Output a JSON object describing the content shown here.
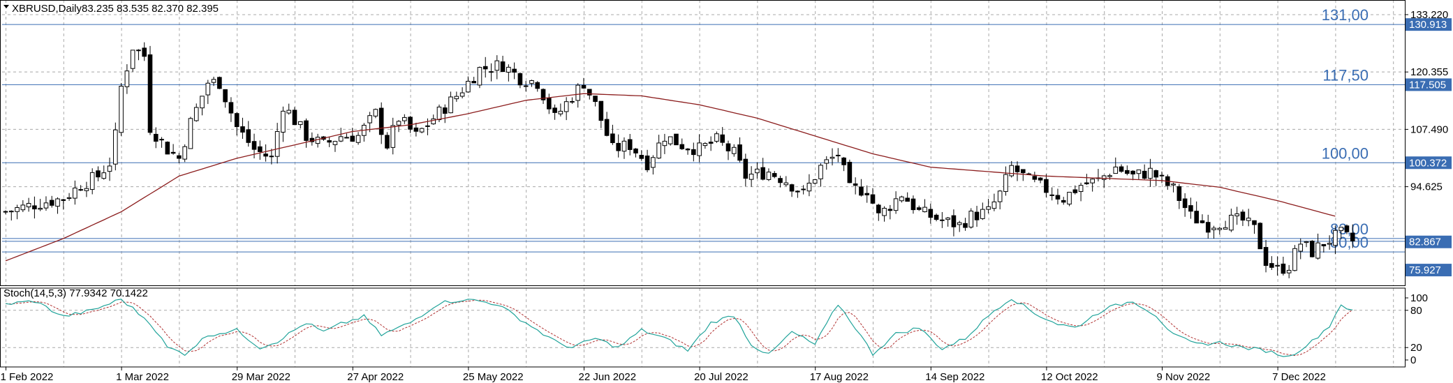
{
  "header": {
    "symbol": "XBRUSD,Daily",
    "ohlc": "83.235 83.535 82.370 82.395"
  },
  "indicator": {
    "label": "Stoch(14,5,3) 77.9342 70.1422",
    "levels": [
      100,
      80,
      20,
      0
    ],
    "level_labels": [
      "100",
      "80",
      "20",
      "0"
    ]
  },
  "colors": {
    "bull": "#ffffff",
    "bear": "#000000",
    "ma": "#8b1c1c",
    "stoch_main": "#20a39a",
    "stoch_signal": "#b03030",
    "level_line": "#3a6db3",
    "tag_bg": "#3a6db3"
  },
  "chart_data": {
    "type": "candlestick",
    "y_axis_ticks": [
      "133.220",
      "120.355",
      "107.490",
      "94.625"
    ],
    "y_axis_tick_values": [
      133.22,
      120.355,
      107.49,
      94.625
    ],
    "ylim": [
      72.5,
      136.5
    ],
    "x_tick_labels": [
      "1 Feb 2022",
      "1 Mar 2022",
      "29 Mar 2022",
      "27 Apr 2022",
      "25 May 2022",
      "22 Jun 2022",
      "20 Jul 2022",
      "17 Aug 2022",
      "14 Sep 2022",
      "12 Oct 2022",
      "9 Nov 2022",
      "7 Dec 2022"
    ],
    "x_tick_index": [
      0,
      20,
      40,
      60,
      80,
      100,
      120,
      140,
      160,
      180,
      200,
      220
    ],
    "price_levels": [
      {
        "label": "131,00",
        "value": 131.0,
        "tag": "130.913"
      },
      {
        "label": "117,50",
        "value": 117.5,
        "tag": "117.505"
      },
      {
        "label": "100,00",
        "value": 100.0,
        "tag": "100.372"
      },
      {
        "label": "83,00",
        "value": 83.0,
        "tag": "82.867"
      },
      {
        "label": "80,00",
        "value": 80.0,
        "tag": "75.927"
      }
    ],
    "close_anchors": [
      [
        0,
        89
      ],
      [
        6,
        91
      ],
      [
        10,
        92
      ],
      [
        13,
        95
      ],
      [
        16,
        97
      ],
      [
        18,
        100
      ],
      [
        19,
        106
      ],
      [
        20,
        117
      ],
      [
        22,
        126
      ],
      [
        24,
        124
      ],
      [
        25,
        108
      ],
      [
        28,
        103
      ],
      [
        30,
        101
      ],
      [
        32,
        109
      ],
      [
        35,
        118
      ],
      [
        37,
        118
      ],
      [
        40,
        108
      ],
      [
        43,
        103
      ],
      [
        46,
        101
      ],
      [
        48,
        113
      ],
      [
        52,
        106
      ],
      [
        55,
        104
      ],
      [
        58,
        106
      ],
      [
        61,
        106
      ],
      [
        64,
        111
      ],
      [
        66,
        104
      ],
      [
        68,
        110
      ],
      [
        71,
        106
      ],
      [
        74,
        110
      ],
      [
        78,
        115
      ],
      [
        82,
        121
      ],
      [
        86,
        122
      ],
      [
        89,
        119
      ],
      [
        92,
        118
      ],
      [
        95,
        110
      ],
      [
        98,
        115
      ],
      [
        100,
        118
      ],
      [
        102,
        113
      ],
      [
        105,
        103
      ],
      [
        108,
        104
      ],
      [
        111,
        100
      ],
      [
        114,
        106
      ],
      [
        117,
        104
      ],
      [
        120,
        103
      ],
      [
        123,
        105
      ],
      [
        126,
        102
      ],
      [
        128,
        97
      ],
      [
        132,
        98
      ],
      [
        135,
        96
      ],
      [
        138,
        93
      ],
      [
        141,
        99
      ],
      [
        144,
        102
      ],
      [
        146,
        94
      ],
      [
        149,
        94
      ],
      [
        151,
        88
      ],
      [
        155,
        93
      ],
      [
        158,
        89
      ],
      [
        162,
        87
      ],
      [
        165,
        86
      ],
      [
        167,
        88
      ],
      [
        170,
        89
      ],
      [
        172,
        93
      ],
      [
        174,
        99
      ],
      [
        177,
        96
      ],
      [
        180,
        94
      ],
      [
        183,
        92
      ],
      [
        186,
        95
      ],
      [
        189,
        96
      ],
      [
        192,
        99
      ],
      [
        195,
        97
      ],
      [
        198,
        98
      ],
      [
        200,
        96
      ],
      [
        202,
        94
      ],
      [
        205,
        88
      ],
      [
        208,
        86
      ],
      [
        211,
        87
      ],
      [
        214,
        87
      ],
      [
        216,
        85
      ],
      [
        218,
        78
      ],
      [
        220,
        76
      ],
      [
        222,
        77
      ],
      [
        224,
        82
      ],
      [
        226,
        80
      ],
      [
        228,
        82
      ],
      [
        231,
        84
      ],
      [
        233,
        82.4
      ]
    ],
    "candle_count": 234,
    "ma_anchors": [
      [
        0,
        78
      ],
      [
        10,
        83
      ],
      [
        20,
        89
      ],
      [
        30,
        97
      ],
      [
        40,
        101
      ],
      [
        50,
        104
      ],
      [
        60,
        107
      ],
      [
        70,
        108.5
      ],
      [
        80,
        111
      ],
      [
        90,
        114
      ],
      [
        100,
        115.5
      ],
      [
        110,
        115
      ],
      [
        120,
        113
      ],
      [
        130,
        110
      ],
      [
        140,
        106
      ],
      [
        150,
        102
      ],
      [
        160,
        99
      ],
      [
        170,
        98
      ],
      [
        180,
        97
      ],
      [
        190,
        96.5
      ],
      [
        200,
        96
      ],
      [
        210,
        94.5
      ],
      [
        220,
        91.5
      ],
      [
        230,
        88
      ]
    ],
    "stoch_anchors": [
      [
        0,
        90
      ],
      [
        5,
        95
      ],
      [
        10,
        70
      ],
      [
        15,
        80
      ],
      [
        20,
        98
      ],
      [
        25,
        60
      ],
      [
        28,
        20
      ],
      [
        31,
        10
      ],
      [
        35,
        40
      ],
      [
        40,
        48
      ],
      [
        44,
        20
      ],
      [
        47,
        30
      ],
      [
        52,
        60
      ],
      [
        55,
        45
      ],
      [
        58,
        58
      ],
      [
        62,
        70
      ],
      [
        65,
        40
      ],
      [
        70,
        60
      ],
      [
        75,
        92
      ],
      [
        80,
        98
      ],
      [
        85,
        90
      ],
      [
        90,
        60
      ],
      [
        95,
        30
      ],
      [
        98,
        20
      ],
      [
        102,
        35
      ],
      [
        106,
        20
      ],
      [
        110,
        48
      ],
      [
        114,
        35
      ],
      [
        118,
        15
      ],
      [
        122,
        60
      ],
      [
        126,
        72
      ],
      [
        129,
        25
      ],
      [
        132,
        8
      ],
      [
        136,
        45
      ],
      [
        140,
        25
      ],
      [
        144,
        90
      ],
      [
        147,
        52
      ],
      [
        150,
        10
      ],
      [
        154,
        42
      ],
      [
        158,
        52
      ],
      [
        162,
        18
      ],
      [
        166,
        35
      ],
      [
        171,
        80
      ],
      [
        174,
        100
      ],
      [
        178,
        75
      ],
      [
        182,
        58
      ],
      [
        185,
        52
      ],
      [
        190,
        82
      ],
      [
        195,
        95
      ],
      [
        199,
        72
      ],
      [
        202,
        40
      ],
      [
        206,
        25
      ],
      [
        210,
        28
      ],
      [
        214,
        20
      ],
      [
        218,
        15
      ],
      [
        222,
        5
      ],
      [
        226,
        30
      ],
      [
        229,
        55
      ],
      [
        231,
        90
      ],
      [
        233,
        78
      ]
    ]
  }
}
